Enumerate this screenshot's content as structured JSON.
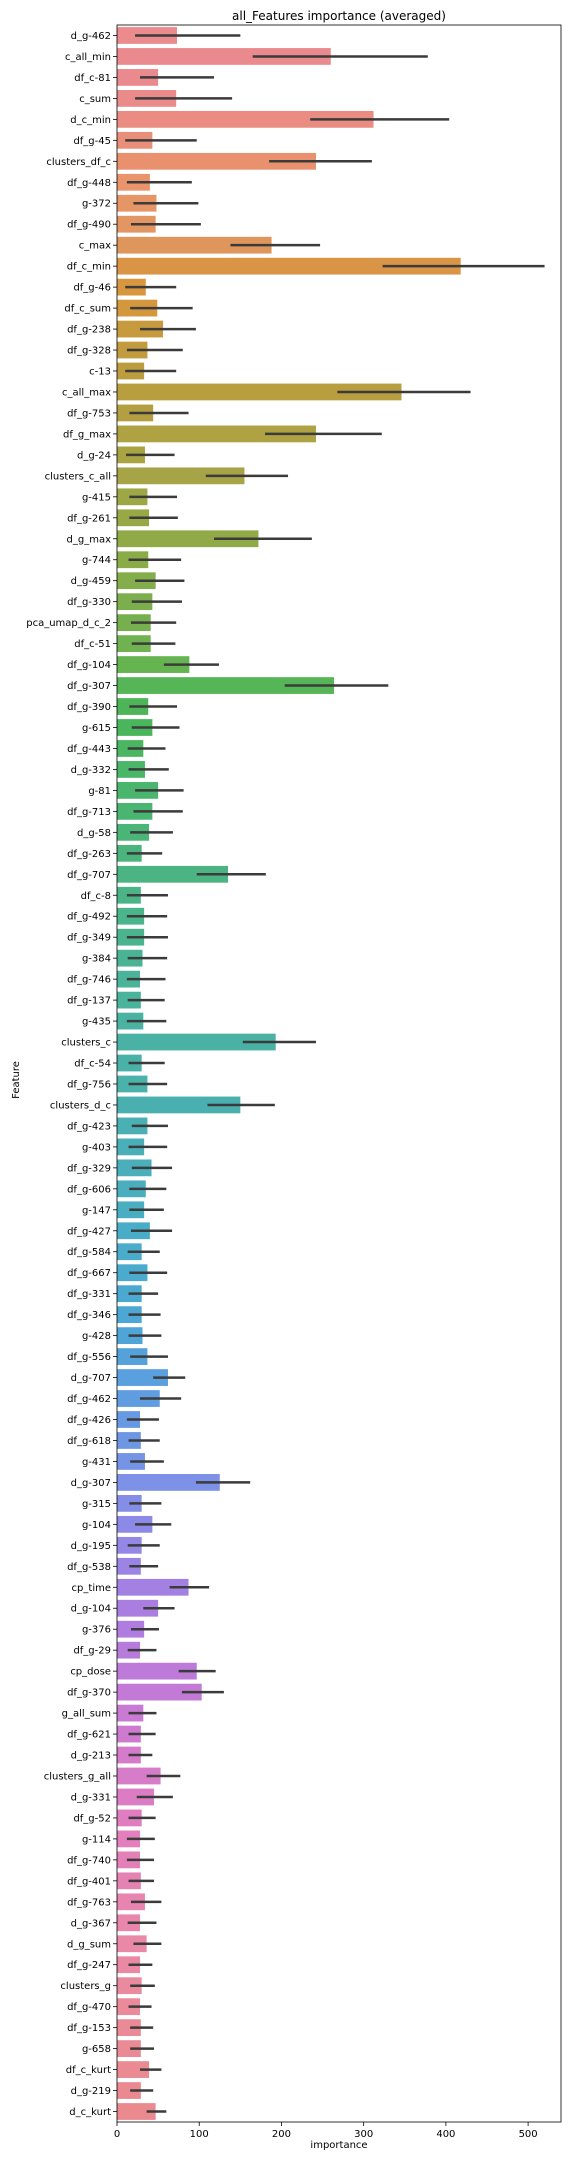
{
  "chart_data": {
    "type": "bar",
    "orientation": "horizontal",
    "title": "all_Features importance (averaged)",
    "xlabel": "importance",
    "ylabel": "Feature",
    "xlim": [
      0,
      540
    ],
    "xticks": [
      0,
      100,
      200,
      300,
      400,
      500
    ],
    "grid": false,
    "legend": "none",
    "error_bar_color": "#3b3b3b",
    "categories": [
      "d_g-462",
      "c_all_min",
      "df_c-81",
      "c_sum",
      "d_c_min",
      "df_g-45",
      "clusters_df_c",
      "df_g-448",
      "g-372",
      "df_g-490",
      "c_max",
      "df_c_min",
      "df_g-46",
      "df_c_sum",
      "df_g-238",
      "df_g-328",
      "c-13",
      "c_all_max",
      "df_g-753",
      "df_g_max",
      "d_g-24",
      "clusters_c_all",
      "g-415",
      "df_g-261",
      "d_g_max",
      "g-744",
      "d_g-459",
      "df_g-330",
      "pca_umap_d_c_2",
      "df_c-51",
      "df_g-104",
      "df_g-307",
      "df_g-390",
      "g-615",
      "df_g-443",
      "d_g-332",
      "g-81",
      "df_g-713",
      "d_g-58",
      "df_g-263",
      "df_g-707",
      "df_c-8",
      "df_g-492",
      "df_g-349",
      "g-384",
      "df_g-746",
      "df_g-137",
      "g-435",
      "clusters_c",
      "df_c-54",
      "df_g-756",
      "clusters_d_c",
      "df_g-423",
      "g-403",
      "df_g-329",
      "df_g-606",
      "g-147",
      "df_g-427",
      "df_g-584",
      "df_g-667",
      "df_g-331",
      "df_g-346",
      "g-428",
      "df_g-556",
      "d_g-707",
      "df_g-462",
      "df_g-426",
      "df_g-618",
      "g-431",
      "d_g-307",
      "g-315",
      "g-104",
      "d_g-195",
      "df_g-538",
      "cp_time",
      "d_g-104",
      "g-376",
      "df_g-29",
      "cp_dose",
      "df_g-370",
      "g_all_sum",
      "df_g-621",
      "d_g-213",
      "clusters_g_all",
      "d_g-331",
      "df_g-52",
      "g-114",
      "df_g-740",
      "df_g-401",
      "df_g-763",
      "d_g-367",
      "d_g_sum",
      "df_g-247",
      "clusters_g",
      "df_g-470",
      "df_g-153",
      "g-658",
      "df_c_kurt",
      "d_g-219",
      "d_c_kurt"
    ],
    "values": [
      73,
      260,
      50,
      72,
      312,
      43,
      242,
      40,
      48,
      47,
      188,
      418,
      35,
      49,
      56,
      37,
      33,
      346,
      44,
      242,
      34,
      155,
      37,
      39,
      172,
      38,
      47,
      43,
      41,
      41,
      88,
      264,
      38,
      43,
      32,
      34,
      50,
      43,
      39,
      30,
      135,
      29,
      33,
      33,
      31,
      28,
      29,
      32,
      193,
      30,
      37,
      150,
      37,
      33,
      42,
      35,
      33,
      40,
      30,
      37,
      30,
      30,
      31,
      37,
      62,
      52,
      28,
      29,
      34,
      125,
      30,
      43,
      30,
      29,
      87,
      50,
      33,
      28,
      97,
      103,
      32,
      29,
      29,
      53,
      45,
      30,
      28,
      28,
      29,
      34,
      28,
      36,
      28,
      30,
      28,
      29,
      29,
      39,
      29,
      47
    ],
    "errors": [
      [
        22,
        150
      ],
      [
        165,
        378
      ],
      [
        28,
        118
      ],
      [
        22,
        140
      ],
      [
        235,
        404
      ],
      [
        10,
        97
      ],
      [
        185,
        310
      ],
      [
        12,
        91
      ],
      [
        20,
        99
      ],
      [
        17,
        102
      ],
      [
        138,
        247
      ],
      [
        323,
        520
      ],
      [
        10,
        72
      ],
      [
        16,
        92
      ],
      [
        28,
        96
      ],
      [
        12,
        80
      ],
      [
        10,
        72
      ],
      [
        268,
        430
      ],
      [
        15,
        87
      ],
      [
        180,
        322
      ],
      [
        11,
        70
      ],
      [
        108,
        208
      ],
      [
        15,
        73
      ],
      [
        15,
        74
      ],
      [
        118,
        237
      ],
      [
        14,
        78
      ],
      [
        22,
        82
      ],
      [
        18,
        79
      ],
      [
        17,
        72
      ],
      [
        18,
        71
      ],
      [
        57,
        124
      ],
      [
        204,
        330
      ],
      [
        15,
        73
      ],
      [
        18,
        76
      ],
      [
        13,
        59
      ],
      [
        14,
        63
      ],
      [
        22,
        81
      ],
      [
        20,
        80
      ],
      [
        16,
        68
      ],
      [
        12,
        55
      ],
      [
        97,
        181
      ],
      [
        12,
        62
      ],
      [
        12,
        61
      ],
      [
        12,
        62
      ],
      [
        13,
        61
      ],
      [
        12,
        59
      ],
      [
        13,
        58
      ],
      [
        12,
        60
      ],
      [
        153,
        242
      ],
      [
        14,
        58
      ],
      [
        14,
        61
      ],
      [
        110,
        192
      ],
      [
        18,
        62
      ],
      [
        14,
        61
      ],
      [
        18,
        67
      ],
      [
        15,
        60
      ],
      [
        15,
        57
      ],
      [
        17,
        67
      ],
      [
        13,
        52
      ],
      [
        15,
        61
      ],
      [
        14,
        50
      ],
      [
        14,
        53
      ],
      [
        14,
        54
      ],
      [
        16,
        62
      ],
      [
        44,
        83
      ],
      [
        28,
        78
      ],
      [
        12,
        51
      ],
      [
        14,
        52
      ],
      [
        16,
        57
      ],
      [
        96,
        162
      ],
      [
        15,
        54
      ],
      [
        22,
        66
      ],
      [
        13,
        52
      ],
      [
        15,
        50
      ],
      [
        64,
        112
      ],
      [
        32,
        70
      ],
      [
        17,
        51
      ],
      [
        13,
        48
      ],
      [
        75,
        120
      ],
      [
        79,
        130
      ],
      [
        14,
        48
      ],
      [
        14,
        47
      ],
      [
        14,
        43
      ],
      [
        36,
        77
      ],
      [
        24,
        68
      ],
      [
        14,
        47
      ],
      [
        12,
        46
      ],
      [
        12,
        45
      ],
      [
        14,
        45
      ],
      [
        17,
        54
      ],
      [
        13,
        48
      ],
      [
        20,
        54
      ],
      [
        14,
        43
      ],
      [
        16,
        46
      ],
      [
        14,
        42
      ],
      [
        16,
        44
      ],
      [
        16,
        45
      ],
      [
        28,
        54
      ],
      [
        16,
        44
      ],
      [
        36,
        60
      ]
    ],
    "colors": [
      "#eb8b8e",
      "#ea8a8e",
      "#ea8a8e",
      "#ea8b8a",
      "#ea8c82",
      "#e98e79",
      "#e9916e",
      "#e9946a",
      "#e69567",
      "#e39662",
      "#df965d",
      "#da9445",
      "#d8963f",
      "#d3973e",
      "#c89a3e",
      "#c29b3e",
      "#bc9c3e",
      "#b99e3f",
      "#b39f41",
      "#aea242",
      "#a9a342",
      "#a6a446",
      "#9ea745",
      "#97a845",
      "#91a946",
      "#8aac47",
      "#83ae4b",
      "#7cae4d",
      "#76b04e",
      "#70b24f",
      "#65b450",
      "#56b556",
      "#4db557",
      "#4ab65c",
      "#4ab662",
      "#4ab668",
      "#4ab66d",
      "#4ab571",
      "#4ab577",
      "#4ab47c",
      "#4cb482",
      "#4ab486",
      "#4ab48b",
      "#4ab48f",
      "#4ab393",
      "#4ab399",
      "#4ab39c",
      "#4ab2a0",
      "#4ab2a4",
      "#4ab1a8",
      "#4ab1ab",
      "#4ab0af",
      "#4ab0b4",
      "#4aafb8",
      "#4aafbb",
      "#4aaebf",
      "#4aaec3",
      "#4aadc7",
      "#4aacca",
      "#4aabce",
      "#4ba9d1",
      "#4da7d5",
      "#50a5d8",
      "#55a2db",
      "#5aa0de",
      "#609de0",
      "#679ae2",
      "#6e97e3",
      "#7594e5",
      "#7d91e6",
      "#858ee6",
      "#8c8ae6",
      "#9487e5",
      "#9b84e4",
      "#a381e3",
      "#aa7ee1",
      "#b17cdf",
      "#b77bdc",
      "#bd7ad9",
      "#c37ad6",
      "#c97ad2",
      "#ce7acf",
      "#d47bcb",
      "#d77cc8",
      "#db7cc4",
      "#df7dc0",
      "#e27fbc",
      "#e380b8",
      "#e582b4",
      "#e784b0",
      "#e886ab",
      "#e988a7",
      "#ea89a3",
      "#ea8a9f",
      "#ea8a9b",
      "#ea8a97",
      "#ea8a94",
      "#ea8a92",
      "#ea8a90",
      "#ea8a8f"
    ]
  }
}
